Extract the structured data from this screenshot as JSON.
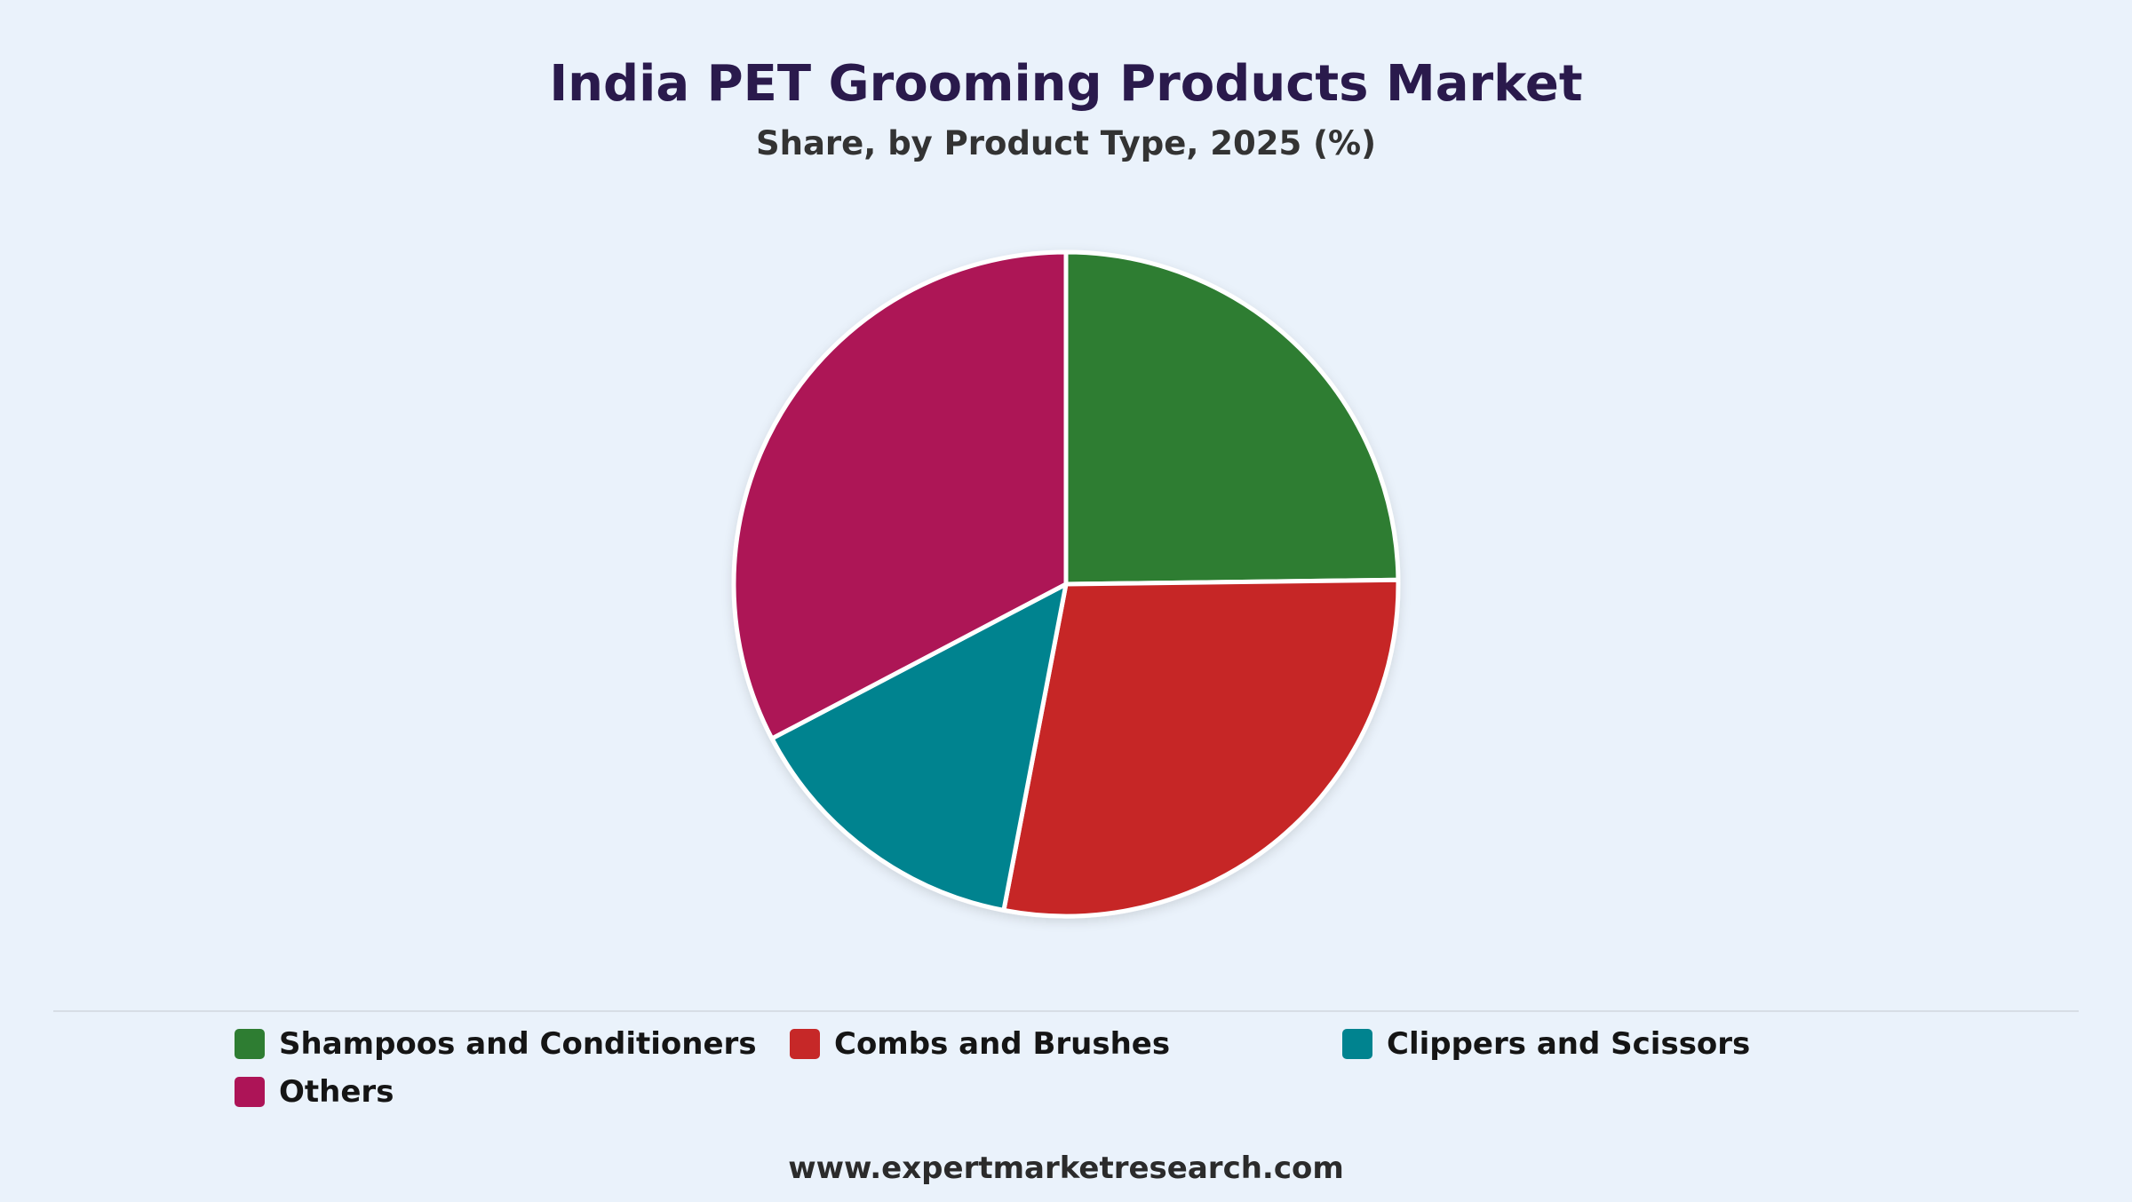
{
  "header": {
    "title": "India PET Grooming Products Market",
    "subtitle": "Share, by Product Type, 2025 (%)"
  },
  "footer": {
    "source": "www.expertmarketresearch.com"
  },
  "colors": {
    "background": "#eaf2fb",
    "slice_border": "#ffffff"
  },
  "chart_data": {
    "type": "pie",
    "title": "India PET Grooming Products Market",
    "subtitle": "Share, by Product Type, 2025 (%)",
    "unit": "%",
    "legend_position": "bottom",
    "start_angle_deg": 0,
    "direction": "clockwise",
    "slices": [
      {
        "name": "Shampoos and Conditioners",
        "value": 24.8,
        "color": "#2e7d32"
      },
      {
        "name": "Combs and Brushes",
        "value": 28.2,
        "color": "#c62828"
      },
      {
        "name": "Clippers and Scissors",
        "value": 14.3,
        "color": "#00838f"
      },
      {
        "name": "Others",
        "value": 32.7,
        "color": "#ad1457"
      }
    ]
  }
}
